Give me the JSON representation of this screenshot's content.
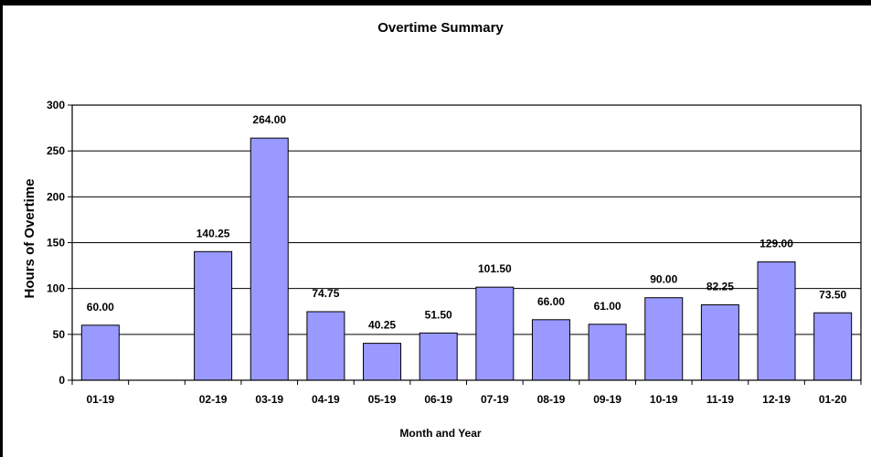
{
  "chart_data": {
    "type": "bar",
    "title": "Overtime Summary",
    "xlabel": "Month and Year",
    "ylabel": "Hours of Overtime",
    "categories": [
      "01-19",
      "",
      "02-19",
      "03-19",
      "04-19",
      "05-19",
      "06-19",
      "07-19",
      "08-19",
      "09-19",
      "10-19",
      "11-19",
      "12-19",
      "01-20"
    ],
    "values": [
      60.0,
      null,
      140.25,
      264.0,
      74.75,
      40.25,
      51.5,
      101.5,
      66.0,
      61.0,
      90.0,
      82.25,
      129.0,
      73.5
    ],
    "data_labels": [
      "60.00",
      "",
      "140.25",
      "264.00",
      "74.75",
      "40.25",
      "51.50",
      "101.50",
      "66.00",
      "61.00",
      "90.00",
      "82.25",
      "129.00",
      "73.50"
    ],
    "ylim": [
      0,
      300
    ],
    "yticks": [
      0,
      50,
      100,
      150,
      200,
      250,
      300
    ],
    "grid": true,
    "legend": "none",
    "colors": {
      "bar": "#9999ff",
      "bar_border": "#000000",
      "grid": "#000000",
      "background": "#ffffff",
      "frame": "#000000"
    }
  }
}
